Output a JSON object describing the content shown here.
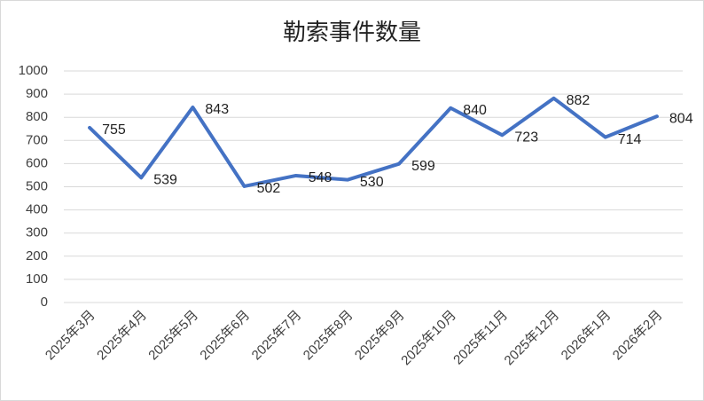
{
  "chart_data": {
    "type": "line",
    "title": "勒索事件数量",
    "categories": [
      "2025年3月",
      "2025年4月",
      "2025年5月",
      "2025年6月",
      "2025年7月",
      "2025年8月",
      "2025年9月",
      "2025年10月",
      "2025年11月",
      "2025年12月",
      "2026年1月",
      "2026年2月"
    ],
    "series": [
      {
        "name": "勒索事件数量",
        "color": "#4472c4",
        "values": [
          755,
          539,
          843,
          502,
          548,
          530,
          599,
          840,
          723,
          882,
          714,
          804
        ]
      }
    ],
    "ylim": [
      0,
      1000
    ],
    "yticks": [
      0,
      100,
      200,
      300,
      400,
      500,
      600,
      700,
      800,
      900,
      1000
    ],
    "grid": true
  }
}
